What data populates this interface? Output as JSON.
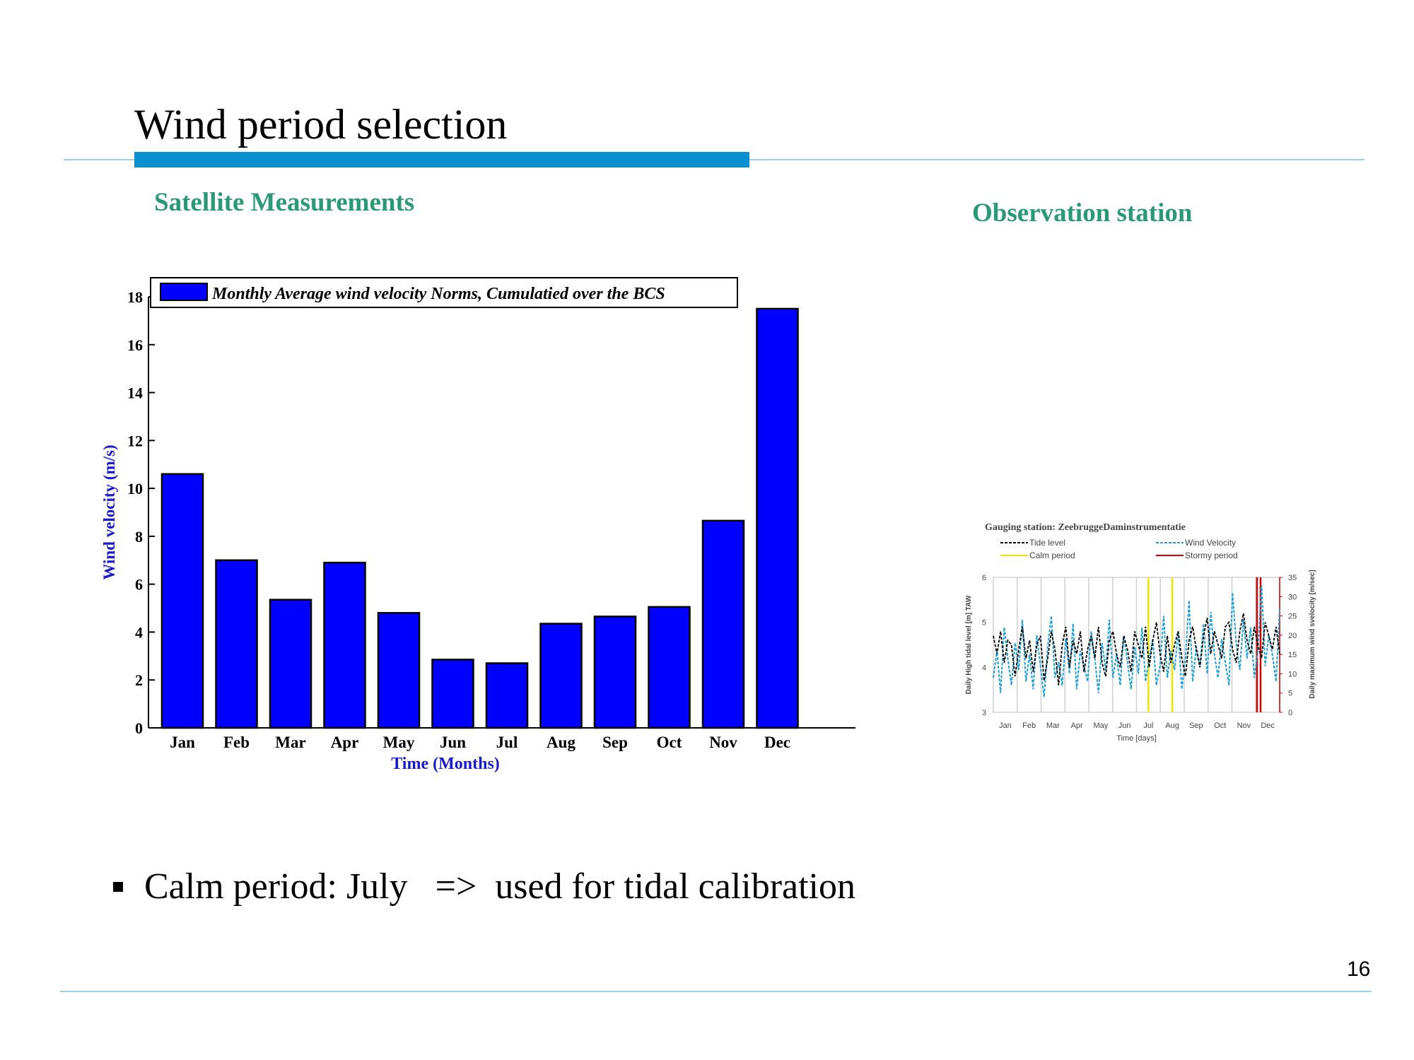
{
  "slide": {
    "title": "Wind period selection",
    "satellite_label": "Satellite  Measurements",
    "observation_label": "Observation station",
    "bullet": "Calm period: July   =>  used for tidal calibration",
    "page_number": "16",
    "accent_color": "#0a8fd0",
    "label_color": "#2a9a74"
  },
  "chart_data": [
    {
      "type": "bar",
      "categories": [
        "Jan",
        "Feb",
        "Mar",
        "Apr",
        "May",
        "Jun",
        "Jul",
        "Aug",
        "Sep",
        "Oct",
        "Nov",
        "Dec"
      ],
      "values": [
        10.6,
        7.0,
        5.35,
        6.9,
        4.8,
        2.85,
        2.7,
        4.35,
        4.65,
        5.05,
        8.65,
        17.5
      ],
      "legend": "Monthly Average wind velocity Norms, Cumulatied over the BCS",
      "xlabel": "Time (Months)",
      "ylabel": "Wind velocity (m/s)",
      "ylim": [
        0,
        18
      ],
      "yticks": [
        0,
        2,
        4,
        6,
        8,
        10,
        12,
        14,
        16,
        18
      ],
      "bar_color": "#0000ff",
      "axis_label_color": "#1a1acc",
      "legend_placement": "top-left"
    },
    {
      "type": "line",
      "title": "Gauging station: ZeebruggeDaminstrumentatie",
      "xlabel": "Time [days]",
      "ylabel": "Daily High tidal level [m] TAW",
      "y2label": "Daily maximum  wind svelocity  [m/sec]",
      "x_ticks": [
        "Jan",
        "Feb",
        "Mar",
        "Apr",
        "May",
        "Jun",
        "Jul",
        "Aug",
        "Sep",
        "Oct",
        "Nov",
        "Dec"
      ],
      "ylim": [
        3,
        6
      ],
      "yticks": [
        3,
        4,
        5,
        6
      ],
      "y2lim": [
        0,
        35
      ],
      "y2ticks": [
        0,
        5,
        10,
        15,
        20,
        25,
        30,
        35
      ],
      "legend": [
        {
          "name": "Tide level",
          "color": "#000000",
          "style": "dashed"
        },
        {
          "name": "Wind Velocity",
          "color": "#1ea0d6",
          "style": "dashed"
        },
        {
          "name": "Calm period",
          "color": "#f2e600",
          "style": "solid"
        },
        {
          "name": "Stormy period",
          "color": "#cc0000",
          "style": "solid"
        }
      ],
      "calm_period_month_positions": [
        6.5,
        7.5
      ],
      "stormy_period_month_positions": [
        11.05,
        11.2
      ],
      "series": [
        {
          "name": "Tide level",
          "color": "#000000",
          "values": [
            4.7,
            4.3,
            4.8,
            4.1,
            4.6,
            4.5,
            3.8,
            4.4,
            4.9,
            4.2,
            4.6,
            3.9,
            4.5,
            4.7,
            3.7,
            4.2,
            4.8,
            4.4,
            3.6,
            4.5,
            4.9,
            4.0,
            4.6,
            4.3,
            4.8,
            3.9,
            4.4,
            4.7,
            4.2,
            4.9,
            4.1,
            3.8,
            4.6,
            4.8,
            4.3,
            4.0,
            4.7,
            4.4,
            3.9,
            4.8,
            4.5,
            4.2,
            4.9,
            4.0,
            4.6,
            5.0,
            4.3,
            3.9,
            4.7,
            4.1,
            4.5,
            4.8,
            4.2,
            3.8,
            4.6,
            4.9,
            4.4,
            4.0,
            4.7,
            5.1,
            4.3,
            4.8,
            4.5,
            4.2,
            4.9,
            5.0,
            4.4,
            4.1,
            4.8,
            5.2,
            4.6,
            4.3,
            4.9,
            4.5,
            4.2,
            5.0,
            4.7,
            4.4,
            4.9,
            4.3
          ]
        },
        {
          "name": "Wind Velocity",
          "color": "#1ea0d6",
          "values": [
            9,
            16,
            5,
            22,
            14,
            7,
            18,
            11,
            24,
            8,
            15,
            6,
            20,
            12,
            4,
            17,
            25,
            9,
            13,
            7,
            19,
            10,
            23,
            6,
            16,
            12,
            8,
            21,
            14,
            5,
            18,
            11,
            24,
            9,
            15,
            7,
            20,
            13,
            6,
            17,
            10,
            22,
            8,
            14,
            19,
            7,
            12,
            25,
            9,
            16,
            11,
            21,
            6,
            14,
            29,
            8,
            17,
            12,
            23,
            10,
            26,
            15,
            9,
            19,
            13,
            7,
            31,
            18,
            11,
            24,
            14,
            22,
            9,
            16,
            33,
            12,
            20,
            15,
            8,
            27
          ]
        }
      ]
    }
  ]
}
